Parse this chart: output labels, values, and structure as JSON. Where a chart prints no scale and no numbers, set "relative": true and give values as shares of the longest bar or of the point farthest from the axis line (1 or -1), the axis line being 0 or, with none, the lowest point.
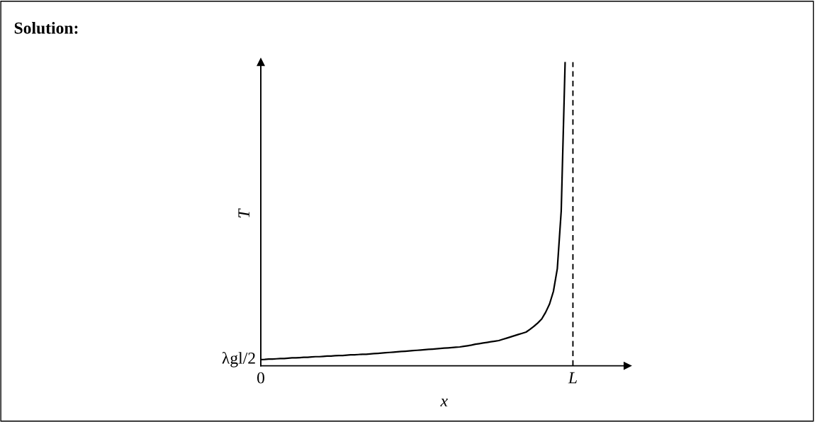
{
  "chart_data": {
    "type": "line",
    "title": "Solution:",
    "xlabel": "x",
    "ylabel": "T",
    "relative": true,
    "categories": [
      "0",
      null,
      null,
      null,
      null,
      null,
      null,
      null,
      null,
      null,
      null,
      null,
      null,
      null,
      null,
      null,
      null,
      null,
      null,
      null,
      null,
      null,
      null,
      null,
      null,
      null,
      null,
      null,
      null,
      null,
      null,
      null,
      null,
      null,
      null,
      null,
      null,
      null,
      null,
      null,
      null,
      null,
      null,
      null,
      null,
      null,
      null,
      null,
      null,
      null,
      null,
      null,
      null,
      null,
      null,
      null,
      null,
      null,
      null,
      null,
      null,
      null,
      null,
      null,
      null,
      null,
      null,
      null,
      null,
      null,
      null,
      null,
      null,
      null,
      null,
      null,
      null,
      null,
      null,
      null,
      "L",
      null,
      null,
      null,
      null,
      null,
      null,
      null,
      null,
      null,
      null,
      null,
      null,
      null,
      null
    ],
    "series": [
      {
        "color": "#000000",
        "values": [
          0.0205,
          0.021,
          0.022,
          0.022,
          0.023,
          0.024,
          0.024,
          0.025,
          0.026,
          0.026,
          0.027,
          0.028,
          0.028,
          0.029,
          0.03,
          0.03,
          0.031,
          0.032,
          0.032,
          0.033,
          0.034,
          0.034,
          0.035,
          0.036,
          0.036,
          0.037,
          0.038,
          0.038,
          0.039,
          0.04,
          0.041,
          0.042,
          0.043,
          0.044,
          0.045,
          0.046,
          0.047,
          0.048,
          0.049,
          0.05,
          0.051,
          0.052,
          0.053,
          0.054,
          0.055,
          0.056,
          0.057,
          0.058,
          0.059,
          0.06,
          0.061,
          0.062,
          0.064,
          0.066,
          0.068,
          0.071,
          0.073,
          0.075,
          0.077,
          0.079,
          0.081,
          0.083,
          0.087,
          0.091,
          0.095,
          0.099,
          0.103,
          0.107,
          0.111,
          0.12,
          0.13,
          0.141,
          0.154,
          0.176,
          0.203,
          0.245,
          0.32,
          0.51,
          1.0,
          null,
          null,
          null,
          null,
          null,
          null,
          null,
          null,
          null,
          null,
          null,
          null,
          null,
          null,
          null,
          null
        ]
      }
    ],
    "ref_lines": [
      {
        "axis": "x",
        "value": "L",
        "color": "#000000",
        "line_style": "dashed"
      }
    ],
    "annotations": [
      {
        "text": "λgl/2",
        "x": "0",
        "y": 0.0205
      }
    ]
  }
}
